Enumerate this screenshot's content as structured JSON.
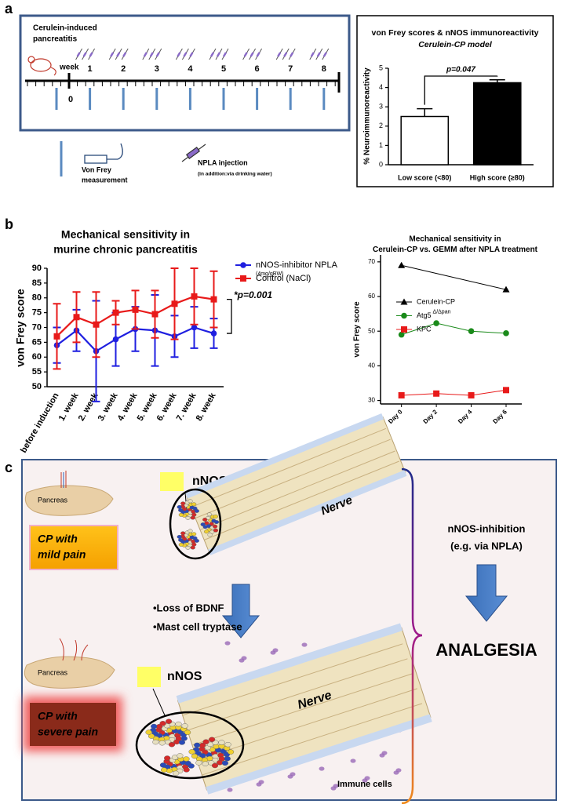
{
  "panels": [
    "a",
    "b",
    "c"
  ],
  "timeline": {
    "title": [
      "Cerulein-induced",
      "pancreatitis"
    ],
    "week_label": "week",
    "weeks": [
      0,
      1,
      2,
      3,
      4,
      5,
      6,
      7,
      8
    ],
    "measurement": [
      "Von Frey",
      "measurement"
    ],
    "injection": "NPLA injection",
    "injection_note": "(in addition:via drinking water)"
  },
  "chart_data": [
    {
      "type": "bar",
      "title": "von Frey scores & nNOS immunoreactivity",
      "subtitle": "Cerulein-CP model",
      "y_label": "% Neuroimmunoreactivity",
      "categories": [
        "Low score (<80)",
        "High score (≥80)"
      ],
      "values": [
        2.5,
        4.25
      ],
      "errors": [
        0.4,
        0.15
      ],
      "colors": [
        "#ffffff",
        "#000000"
      ],
      "ylim": [
        0,
        5
      ],
      "yticks": [
        0,
        1,
        2,
        3,
        4,
        5
      ],
      "annotation": "p=0.047"
    },
    {
      "type": "line",
      "title": [
        "Mechanical sensitivity in",
        "murine chronic pancreatitis"
      ],
      "y_label": "von Frey score",
      "categories": [
        "before induction",
        "1. week",
        "2. week",
        "3. week",
        "4. week",
        "5. week",
        "6. week",
        "7. week",
        "8. week"
      ],
      "series": [
        {
          "name": "nNOS-inhibitor NPLA",
          "note": "(4mg/gBW)",
          "color": "#1f1fe0",
          "marker": "circle",
          "values": [
            64,
            69,
            62,
            66,
            69.5,
            69,
            67,
            70,
            68
          ],
          "errors": [
            6,
            7,
            17,
            9,
            7.5,
            12,
            7,
            7,
            5
          ]
        },
        {
          "name": "Control (NaCl)",
          "color": "#e81a1a",
          "marker": "square",
          "values": [
            67,
            73.5,
            71,
            75,
            76,
            74.5,
            78,
            80.5,
            79.5
          ],
          "errors": [
            11,
            8.5,
            11,
            4,
            6.5,
            8,
            12,
            9.5,
            9.5
          ]
        }
      ],
      "ylim": [
        50,
        90
      ],
      "yticks": [
        50,
        55,
        60,
        65,
        70,
        75,
        80,
        85,
        90
      ],
      "annotation": "*p=0.001"
    },
    {
      "type": "line",
      "title": [
        "Mechanical sensitivity in",
        "Cerulein-CP vs. GEMM after NPLA treatment"
      ],
      "y_label": "von Frey score",
      "series": [
        {
          "name": "Cerulein-CP",
          "color": "#000000",
          "marker": "triangle",
          "x": [
            0,
            6
          ],
          "values": [
            69,
            62
          ]
        },
        {
          "name": "Atg5",
          "name_sup": "Δ/Δpan",
          "color": "#1a8a1a",
          "marker": "circle",
          "x": [
            0,
            2,
            4,
            6
          ],
          "values": [
            49,
            52.3,
            50,
            49.4
          ]
        },
        {
          "name": "KPC",
          "color": "#e81a1a",
          "marker": "square",
          "x": [
            0,
            2,
            4,
            6
          ],
          "values": [
            31.5,
            32,
            31.5,
            33
          ]
        }
      ],
      "xlim": [
        -1.2,
        6.9
      ],
      "xticks": [
        {
          "value": 0,
          "label": "Day 0"
        },
        {
          "value": 2,
          "label": "Day 2"
        },
        {
          "value": 4,
          "label": "Day 4"
        },
        {
          "value": 6,
          "label": "Day 6"
        }
      ],
      "ylim": [
        29,
        72
      ],
      "yticks": [
        30,
        40,
        50,
        60,
        70
      ]
    }
  ],
  "illustration": {
    "pancreas": [
      "Pancreas",
      "Pancreas"
    ],
    "mild": [
      "CP with",
      "mild pain"
    ],
    "severe": [
      "CP with",
      "severe pain"
    ],
    "nnos": [
      "nNOS",
      "nNOS"
    ],
    "nerve": [
      "Nerve",
      "Nerve"
    ],
    "factors": [
      "•Loss of BDNF",
      "•Mast cell tryptase"
    ],
    "immune": "Immune cells",
    "inhibition": [
      "nNOS-inhibition",
      "(e.g. via NPLA)"
    ],
    "result": "ANALGESIA"
  }
}
